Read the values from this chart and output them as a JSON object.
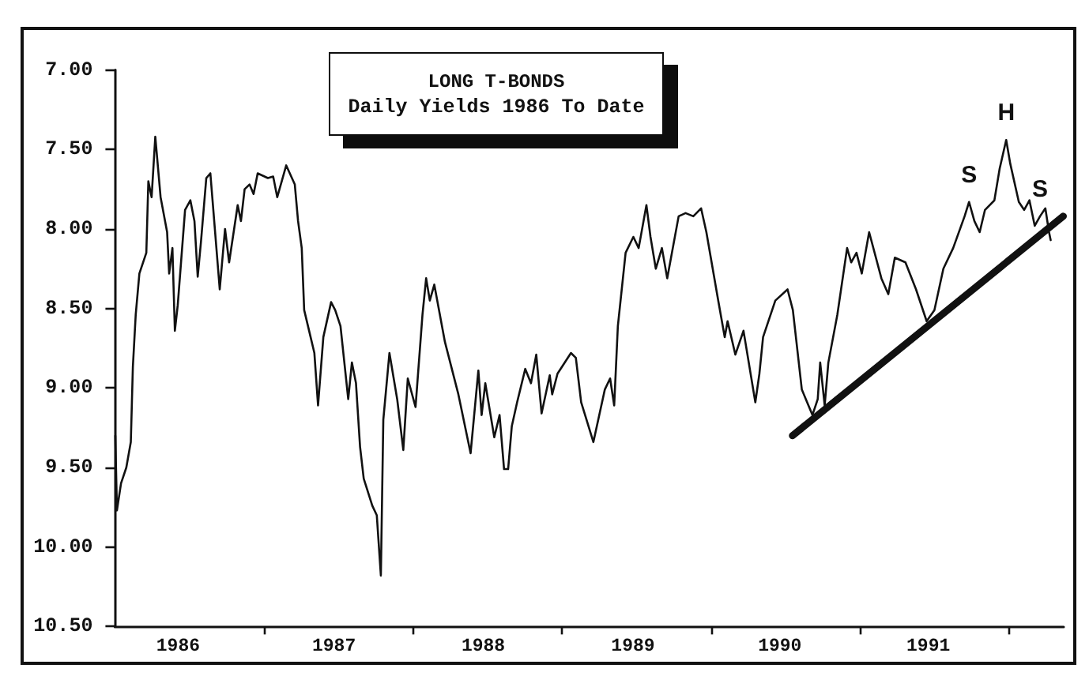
{
  "chart_data": {
    "type": "line",
    "title": "LONG T-BONDS",
    "subtitle": "Daily Yields 1986 To Date",
    "series": [
      {
        "color": "#111111",
        "x": [
          "1986-01-02",
          "1986-01-06",
          "1986-01-16",
          "1986-01-29",
          "1986-02-09",
          "1986-02-14",
          "1986-02-21",
          "1986-03-02",
          "1986-03-19",
          "1986-03-24",
          "1986-04-01",
          "1986-04-10",
          "1986-04-23",
          "1986-05-09",
          "1986-05-14",
          "1986-05-22",
          "1986-05-28",
          "1986-06-04",
          "1986-06-22",
          "1986-07-05",
          "1986-07-15",
          "1986-07-23",
          "1986-07-31",
          "1986-08-13",
          "1986-08-23",
          "1986-09-15",
          "1986-09-28",
          "1986-10-08",
          "1986-10-29",
          "1986-11-06",
          "1986-11-15",
          "1986-11-27",
          "1986-12-07",
          "1986-12-17",
          "1987-01-11",
          "1987-01-24",
          "1987-02-03",
          "1987-02-25",
          "1987-03-18",
          "1987-03-26",
          "1987-04-04",
          "1987-04-10",
          "1987-04-23",
          "1987-05-05",
          "1987-05-14",
          "1987-05-27",
          "1987-06-15",
          "1987-06-25",
          "1987-07-08",
          "1987-07-27",
          "1987-08-05",
          "1987-08-15",
          "1987-08-25",
          "1987-09-03",
          "1987-09-24",
          "1987-10-05",
          "1987-10-15",
          "1987-10-21",
          "1987-11-05",
          "1987-11-24",
          "1987-12-09",
          "1987-12-20",
          "1988-01-08",
          "1988-01-25",
          "1988-02-03",
          "1988-02-12",
          "1988-02-23",
          "1988-03-20",
          "1988-04-22",
          "1988-05-22",
          "1988-06-10",
          "1988-06-18",
          "1988-06-27",
          "1988-07-19",
          "1988-08-01",
          "1988-08-12",
          "1988-08-22",
          "1988-08-31",
          "1988-09-13",
          "1988-10-03",
          "1988-10-17",
          "1988-10-30",
          "1988-11-12",
          "1988-12-02",
          "1988-12-08",
          "1988-12-21",
          "1989-01-23",
          "1989-02-04",
          "1989-02-17",
          "1989-03-19",
          "1989-04-16",
          "1989-04-29",
          "1989-05-09",
          "1989-05-18",
          "1989-06-06",
          "1989-06-25",
          "1989-07-08",
          "1989-07-27",
          "1989-08-06",
          "1989-08-19",
          "1989-09-03",
          "1989-09-16",
          "1989-10-14",
          "1989-10-31",
          "1989-11-19",
          "1989-12-08",
          "1989-12-21",
          "1990-01-19",
          "1990-02-04",
          "1990-02-11",
          "1990-03-02",
          "1990-03-22",
          "1990-04-20",
          "1990-04-30",
          "1990-05-09",
          "1990-06-08",
          "1990-07-08",
          "1990-07-21",
          "1990-08-12",
          "1990-09-07",
          "1990-09-20",
          "1990-09-26",
          "1990-10-07",
          "1990-10-16",
          "1990-11-07",
          "1990-12-01",
          "1990-12-11",
          "1990-12-24",
          "1991-01-06",
          "1991-01-24",
          "1991-02-23",
          "1991-03-12",
          "1991-03-28",
          "1991-04-23",
          "1991-05-19",
          "1991-06-14",
          "1991-07-03",
          "1991-07-25",
          "1991-08-18",
          "1991-09-15",
          "1991-09-26",
          "1991-10-09",
          "1991-10-22",
          "1991-11-04",
          "1991-11-27",
          "1991-12-10",
          "1991-12-26",
          "1992-01-05",
          "1992-01-26",
          "1992-02-08",
          "1992-02-21",
          "1992-03-05",
          "1992-03-18",
          "1992-03-31",
          "1992-04-09",
          "1992-04-13"
        ],
        "values": [
          9.3,
          9.77,
          9.6,
          9.5,
          9.34,
          8.87,
          8.54,
          8.28,
          8.15,
          7.7,
          7.8,
          7.42,
          7.8,
          8.02,
          8.28,
          8.12,
          8.64,
          8.48,
          7.88,
          7.82,
          7.95,
          8.3,
          8.08,
          7.68,
          7.65,
          8.38,
          8.0,
          8.21,
          7.85,
          7.95,
          7.75,
          7.72,
          7.78,
          7.65,
          7.68,
          7.67,
          7.8,
          7.6,
          7.72,
          7.95,
          8.12,
          8.51,
          8.65,
          8.78,
          9.11,
          8.68,
          8.46,
          8.51,
          8.61,
          9.07,
          8.84,
          8.97,
          9.37,
          9.57,
          9.74,
          9.8,
          10.18,
          9.2,
          8.78,
          9.07,
          9.39,
          8.94,
          9.12,
          8.54,
          8.31,
          8.45,
          8.35,
          8.71,
          9.04,
          9.41,
          8.89,
          9.17,
          8.97,
          9.31,
          9.17,
          9.51,
          9.51,
          9.24,
          9.09,
          8.88,
          8.97,
          8.79,
          9.16,
          8.92,
          9.04,
          8.91,
          8.78,
          8.81,
          9.09,
          9.34,
          9.01,
          8.94,
          9.11,
          8.61,
          8.15,
          8.05,
          8.12,
          7.85,
          8.05,
          8.25,
          8.12,
          8.31,
          7.92,
          7.9,
          7.92,
          7.87,
          8.02,
          8.45,
          8.68,
          8.58,
          8.79,
          8.64,
          9.09,
          8.91,
          8.68,
          8.45,
          8.38,
          8.51,
          9.01,
          9.17,
          9.07,
          8.84,
          9.11,
          8.84,
          8.54,
          8.12,
          8.21,
          8.15,
          8.28,
          8.02,
          8.31,
          8.41,
          8.18,
          8.21,
          8.38,
          8.58,
          8.51,
          8.25,
          8.12,
          7.92,
          7.83,
          7.95,
          8.02,
          7.88,
          7.82,
          7.62,
          7.44,
          7.59,
          7.83,
          7.88,
          7.82,
          7.98,
          7.92,
          7.87,
          8.02,
          8.07
        ]
      },
      {
        "color": "#111111",
        "x": [
          "1990-07-20",
          "1992-05-14"
        ],
        "values": [
          9.3,
          7.92
        ]
      }
    ],
    "xlim": [
      "1986-01-01",
      "1992-05-15"
    ],
    "xticks": [
      {
        "value": "1986-06-05",
        "label": "1986"
      },
      {
        "value": "1987-01-01",
        "label": null
      },
      {
        "value": "1987-06-22",
        "label": "1987"
      },
      {
        "value": "1988-01-01",
        "label": null
      },
      {
        "value": "1988-06-22",
        "label": "1988"
      },
      {
        "value": "1989-01-01",
        "label": null
      },
      {
        "value": "1989-06-24",
        "label": "1989"
      },
      {
        "value": "1990-01-01",
        "label": null
      },
      {
        "value": "1990-06-19",
        "label": "1990"
      },
      {
        "value": "1991-01-01",
        "label": null
      },
      {
        "value": "1991-06-18",
        "label": "1991"
      },
      {
        "value": "1992-01-01",
        "label": null
      }
    ],
    "ylim": [
      10.5,
      7.0
    ],
    "yticks": [
      {
        "value": 7.0,
        "label": "7.00"
      },
      {
        "value": 7.5,
        "label": "7.50"
      },
      {
        "value": 8.0,
        "label": "8.00"
      },
      {
        "value": 8.5,
        "label": "8.50"
      },
      {
        "value": 9.0,
        "label": "9.00"
      },
      {
        "value": 9.5,
        "label": "9.50"
      },
      {
        "value": 10.0,
        "label": "10.00"
      },
      {
        "value": 10.5,
        "label": "10.50"
      }
    ],
    "annotations": [
      {
        "text": "S",
        "x": "1991-09-26",
        "y": 7.83
      },
      {
        "text": "H",
        "x": "1991-12-26",
        "y": 7.44
      },
      {
        "text": "S",
        "x": "1992-03-18",
        "y": 7.92
      }
    ],
    "grid": false,
    "marker": "none"
  }
}
